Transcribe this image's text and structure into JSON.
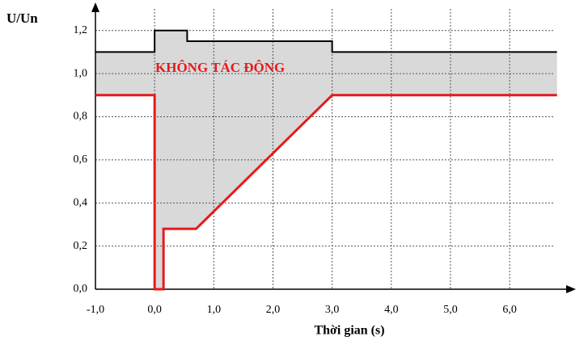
{
  "chart_data": {
    "type": "line",
    "xlabel": "Thời gian (s)",
    "ylabel": "U/Un",
    "annotation": "KHÔNG TÁC ĐỘNG",
    "xlim": [
      -1,
      6.9
    ],
    "ylim": [
      0,
      1.3
    ],
    "xticks": [
      {
        "value": -1,
        "label": "-1,0"
      },
      {
        "value": 0,
        "label": "0,0"
      },
      {
        "value": 1,
        "label": "1,0"
      },
      {
        "value": 2,
        "label": "2,0"
      },
      {
        "value": 3,
        "label": "3,0"
      },
      {
        "value": 4,
        "label": "4,0"
      },
      {
        "value": 5,
        "label": "5,0"
      },
      {
        "value": 6,
        "label": "6,0"
      }
    ],
    "yticks": [
      {
        "value": 0,
        "label": "0,0"
      },
      {
        "value": 0.2,
        "label": "0,2"
      },
      {
        "value": 0.4,
        "label": "0,4"
      },
      {
        "value": 0.6,
        "label": "0,6"
      },
      {
        "value": 0.8,
        "label": "0,8"
      },
      {
        "value": 1,
        "label": "1,0"
      },
      {
        "value": 1.2,
        "label": "1,2"
      }
    ],
    "grid": true,
    "fill_color": "#d9d9d9",
    "series": [
      {
        "color": "#000000",
        "x": [
          -1,
          0,
          0,
          0.55,
          0.55,
          3,
          3,
          6.8
        ],
        "values": [
          1.1,
          1.1,
          1.2,
          1.2,
          1.15,
          1.15,
          1.1,
          1.1
        ]
      },
      {
        "color": "#e8191c",
        "x": [
          -1,
          0,
          0,
          0.15,
          0.15,
          0.7,
          3,
          6.8
        ],
        "values": [
          0.9,
          0.9,
          0,
          0,
          0.28,
          0.28,
          0.9,
          0.9
        ]
      }
    ]
  }
}
